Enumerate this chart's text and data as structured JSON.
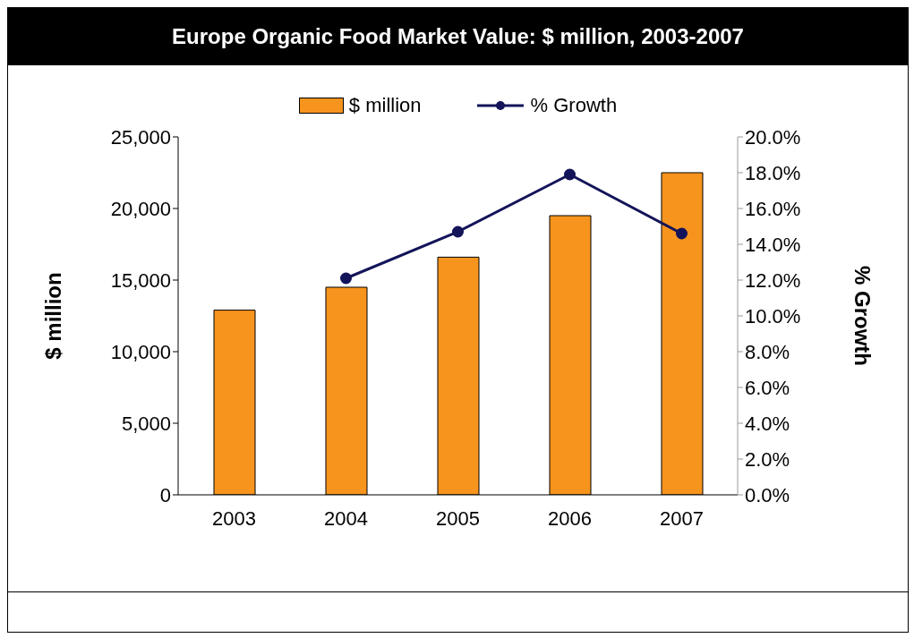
{
  "chart_data": {
    "type": "bar",
    "title": "Europe Organic Food Market Value: $ million, 2003-2007",
    "categories": [
      "2003",
      "2004",
      "2005",
      "2006",
      "2007"
    ],
    "series": [
      {
        "name": "$ million",
        "color": "#f7941d",
        "values": [
          12900,
          14500,
          16600,
          19500,
          22500
        ]
      },
      {
        "name": "% Growth",
        "type": "line",
        "axis": "y2",
        "color": "#14145a",
        "marker": "circle",
        "values": [
          null,
          12.1,
          14.7,
          17.9,
          14.6
        ]
      }
    ],
    "ylabel": "$ million",
    "y2label": "% Growth",
    "ylim": [
      0,
      25000
    ],
    "yticks": [
      0,
      {
        "value": 5000,
        "label": "5,000"
      },
      {
        "value": 10000,
        "label": "10,000"
      },
      {
        "value": 15000,
        "label": "15,000"
      },
      {
        "value": 20000,
        "label": "20,000"
      },
      {
        "value": 25000,
        "label": "25,000"
      }
    ],
    "y2lim": [
      0,
      20
    ],
    "y2ticks": [
      {
        "value": 0,
        "label": "0.0%"
      },
      {
        "value": 2,
        "label": "2.0%"
      },
      {
        "value": 4,
        "label": "4.0%"
      },
      {
        "value": 6,
        "label": "6.0%"
      },
      {
        "value": 8,
        "label": "8.0%"
      },
      {
        "value": 10,
        "label": "10.0%"
      },
      {
        "value": 12,
        "label": "12.0%"
      },
      {
        "value": 14,
        "label": "14.0%"
      },
      {
        "value": 16,
        "label": "16.0%"
      },
      {
        "value": 18,
        "label": "18.0%"
      },
      {
        "value": 20,
        "label": "20.0%"
      }
    ],
    "grid": false,
    "legend": "top"
  }
}
